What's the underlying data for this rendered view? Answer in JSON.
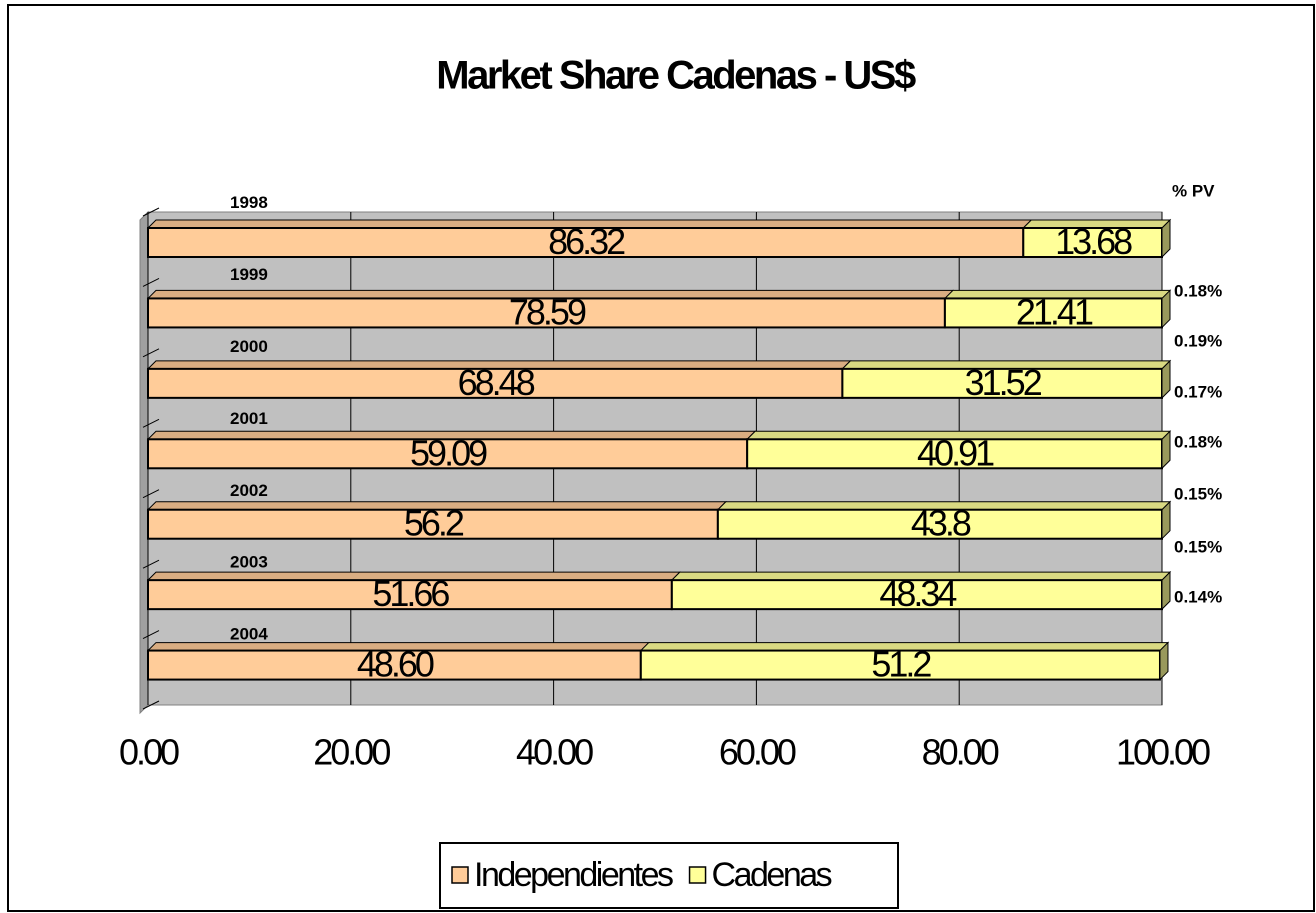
{
  "chart_data": {
    "type": "stacked-bar-horizontal",
    "title": "Market Share Cadenas - US$",
    "categories": [
      "1998",
      "1999",
      "2000",
      "2001",
      "2002",
      "2003",
      "2004"
    ],
    "series": [
      {
        "name": "Independientes",
        "color": "#FFCC99",
        "values": [
          86.32,
          78.59,
          68.48,
          59.09,
          56.2,
          51.66,
          48.6
        ],
        "value_labels": [
          "86.32",
          "78.59",
          "68.48",
          "59.09",
          "56.2",
          "51.66",
          "48.60"
        ]
      },
      {
        "name": "Cadenas",
        "color": "#FFFF99",
        "values": [
          13.68,
          21.41,
          31.52,
          40.91,
          43.8,
          48.34,
          51.2
        ]
      }
    ],
    "xlim": [
      0,
      100
    ],
    "xticks": [
      {
        "value": 0,
        "label": "0.00"
      },
      {
        "value": 20,
        "label": "20.00"
      },
      {
        "value": 40,
        "label": "40.00"
      },
      {
        "value": 60,
        "label": "60.00"
      },
      {
        "value": 80,
        "label": "80.00"
      },
      {
        "value": 100,
        "label": "100.00"
      }
    ],
    "grid": true,
    "plot_background": "#C0C0C0",
    "annotations": {
      "header": "% PV",
      "labels": [
        "0.18%",
        "0.19%",
        "0.17%",
        "0.18%",
        "0.15%",
        "0.15%",
        "0.14%"
      ]
    },
    "legend": "bottom"
  }
}
